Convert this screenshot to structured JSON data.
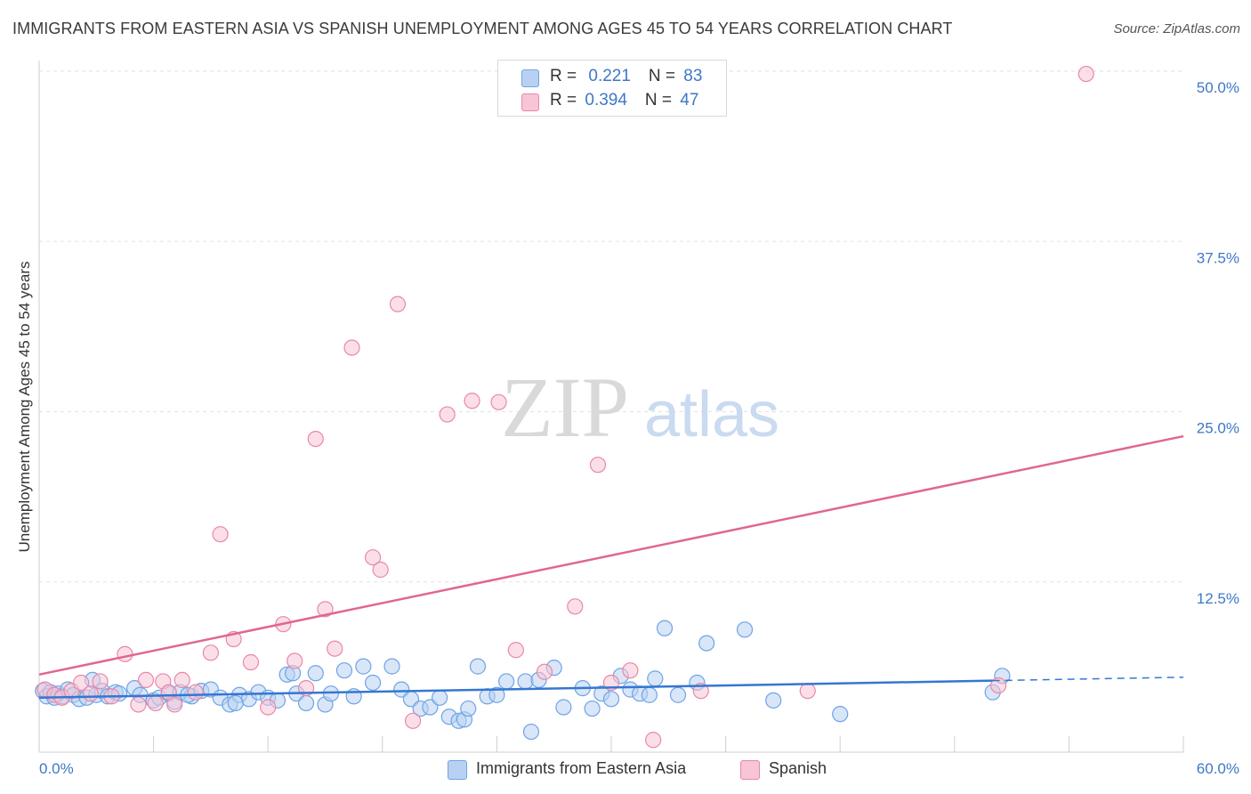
{
  "title": "IMMIGRANTS FROM EASTERN ASIA VS SPANISH UNEMPLOYMENT AMONG AGES 45 TO 54 YEARS CORRELATION CHART",
  "source": "Source: ZipAtlas.com",
  "watermark": {
    "zip": "ZIP",
    "atlas": "atlas"
  },
  "legend_top": {
    "rows": [
      {
        "r_label": "R = ",
        "r_value": "0.221",
        "n_label": "N = ",
        "n_value": "83"
      },
      {
        "r_label": "R = ",
        "r_value": "0.394",
        "n_label": "N = ",
        "n_value": "47"
      }
    ]
  },
  "legend_bottom": {
    "items": [
      {
        "label": "Immigrants from Eastern Asia"
      },
      {
        "label": "Spanish"
      }
    ]
  },
  "chart_data": {
    "type": "scatter",
    "title": "IMMIGRANTS FROM EASTERN ASIA VS SPANISH UNEMPLOYMENT AMONG AGES 45 TO 54 YEARS CORRELATION CHART",
    "xlabel": "",
    "ylabel": "Unemployment Among Ages 45 to 54 years",
    "xlim": [
      0,
      60
    ],
    "ylim": [
      0,
      50
    ],
    "x_tick_labels": [
      "0.0%",
      "60.0%"
    ],
    "y_ticks": [
      12.5,
      25.0,
      37.5,
      50.0
    ],
    "y_tick_labels": [
      "12.5%",
      "25.0%",
      "37.5%",
      "50.0%"
    ],
    "grid": true,
    "legend": "top-center",
    "colors": {
      "blue": "#6fa3e6",
      "blue_fill": "#b8d1f3",
      "blue_line": "#3577d1",
      "pink": "#ea87a7",
      "pink_fill": "#f7c5d5",
      "pink_line": "#e0678f"
    },
    "series": [
      {
        "name": "Immigrants from Eastern Asia",
        "color": "#6fa3e6",
        "trend": {
          "x": [
            0,
            60
          ],
          "y": [
            4.0,
            5.5
          ],
          "solid_until": 50
        },
        "points": [
          [
            0.2,
            4.5
          ],
          [
            0.4,
            4.1
          ],
          [
            0.6,
            4.4
          ],
          [
            0.8,
            4.0
          ],
          [
            1.0,
            4.3
          ],
          [
            1.2,
            4.1
          ],
          [
            1.5,
            4.6
          ],
          [
            1.8,
            4.2
          ],
          [
            2.1,
            3.9
          ],
          [
            2.5,
            4.0
          ],
          [
            2.8,
            5.3
          ],
          [
            3.0,
            4.2
          ],
          [
            3.3,
            4.5
          ],
          [
            3.6,
            4.1
          ],
          [
            4.0,
            4.4
          ],
          [
            4.2,
            4.3
          ],
          [
            5.0,
            4.7
          ],
          [
            5.3,
            4.2
          ],
          [
            6.0,
            3.8
          ],
          [
            6.3,
            4.0
          ],
          [
            6.8,
            4.3
          ],
          [
            7.1,
            3.7
          ],
          [
            7.4,
            4.4
          ],
          [
            8.0,
            4.1
          ],
          [
            8.5,
            4.5
          ],
          [
            9.0,
            4.6
          ],
          [
            9.5,
            4.0
          ],
          [
            10.0,
            3.5
          ],
          [
            10.5,
            4.2
          ],
          [
            11.0,
            3.9
          ],
          [
            11.5,
            4.4
          ],
          [
            12.0,
            4.0
          ],
          [
            12.5,
            3.8
          ],
          [
            13.0,
            5.7
          ],
          [
            13.3,
            5.8
          ],
          [
            13.5,
            4.3
          ],
          [
            14.0,
            3.6
          ],
          [
            14.5,
            5.8
          ],
          [
            15.0,
            3.5
          ],
          [
            15.3,
            4.3
          ],
          [
            16.0,
            6.0
          ],
          [
            16.5,
            4.1
          ],
          [
            17.0,
            6.3
          ],
          [
            17.5,
            5.1
          ],
          [
            18.5,
            6.3
          ],
          [
            19.0,
            4.6
          ],
          [
            19.5,
            3.9
          ],
          [
            20.0,
            3.2
          ],
          [
            20.5,
            3.3
          ],
          [
            21.0,
            4.0
          ],
          [
            21.5,
            2.6
          ],
          [
            22.0,
            2.3
          ],
          [
            22.3,
            2.4
          ],
          [
            22.5,
            3.2
          ],
          [
            23.0,
            6.3
          ],
          [
            23.5,
            4.1
          ],
          [
            24.0,
            4.2
          ],
          [
            24.5,
            5.2
          ],
          [
            25.5,
            5.2
          ],
          [
            25.8,
            1.5
          ],
          [
            26.2,
            5.3
          ],
          [
            27.0,
            6.2
          ],
          [
            27.5,
            3.3
          ],
          [
            28.5,
            4.7
          ],
          [
            29.0,
            3.2
          ],
          [
            29.5,
            4.3
          ],
          [
            30.0,
            3.9
          ],
          [
            30.5,
            5.6
          ],
          [
            31.0,
            4.6
          ],
          [
            31.5,
            4.3
          ],
          [
            32.0,
            4.2
          ],
          [
            32.3,
            5.4
          ],
          [
            32.8,
            9.1
          ],
          [
            33.5,
            4.2
          ],
          [
            34.5,
            5.1
          ],
          [
            35.0,
            8.0
          ],
          [
            37.0,
            9.0
          ],
          [
            38.5,
            3.8
          ],
          [
            42.0,
            2.8
          ],
          [
            50.0,
            4.4
          ],
          [
            50.5,
            5.6
          ],
          [
            10.3,
            3.6
          ],
          [
            7.8,
            4.2
          ]
        ]
      },
      {
        "name": "Spanish",
        "color": "#ea87a7",
        "trend": {
          "x": [
            0,
            60
          ],
          "y": [
            5.7,
            23.2
          ]
        },
        "points": [
          [
            0.3,
            4.6
          ],
          [
            0.8,
            4.2
          ],
          [
            1.2,
            4.0
          ],
          [
            1.7,
            4.5
          ],
          [
            2.2,
            5.1
          ],
          [
            2.7,
            4.3
          ],
          [
            3.2,
            5.2
          ],
          [
            3.8,
            4.1
          ],
          [
            4.5,
            7.2
          ],
          [
            5.2,
            3.5
          ],
          [
            5.6,
            5.3
          ],
          [
            6.1,
            3.6
          ],
          [
            6.5,
            5.2
          ],
          [
            6.8,
            4.4
          ],
          [
            7.1,
            3.5
          ],
          [
            7.5,
            5.3
          ],
          [
            8.2,
            4.4
          ],
          [
            9.0,
            7.3
          ],
          [
            9.5,
            16.0
          ],
          [
            10.2,
            8.3
          ],
          [
            11.1,
            6.6
          ],
          [
            12.0,
            3.3
          ],
          [
            12.8,
            9.4
          ],
          [
            13.4,
            6.7
          ],
          [
            14.0,
            4.7
          ],
          [
            14.5,
            23.0
          ],
          [
            15.0,
            10.5
          ],
          [
            15.5,
            7.6
          ],
          [
            16.4,
            29.7
          ],
          [
            17.5,
            14.3
          ],
          [
            17.9,
            13.4
          ],
          [
            18.8,
            32.9
          ],
          [
            19.6,
            2.3
          ],
          [
            21.4,
            24.8
          ],
          [
            22.7,
            25.8
          ],
          [
            24.1,
            25.7
          ],
          [
            25.0,
            7.5
          ],
          [
            26.5,
            5.9
          ],
          [
            28.1,
            10.7
          ],
          [
            29.3,
            21.1
          ],
          [
            30.0,
            5.1
          ],
          [
            31.0,
            6.0
          ],
          [
            32.2,
            0.9
          ],
          [
            34.7,
            4.5
          ],
          [
            40.3,
            4.5
          ],
          [
            50.3,
            4.9
          ],
          [
            54.9,
            49.8
          ]
        ]
      }
    ]
  }
}
